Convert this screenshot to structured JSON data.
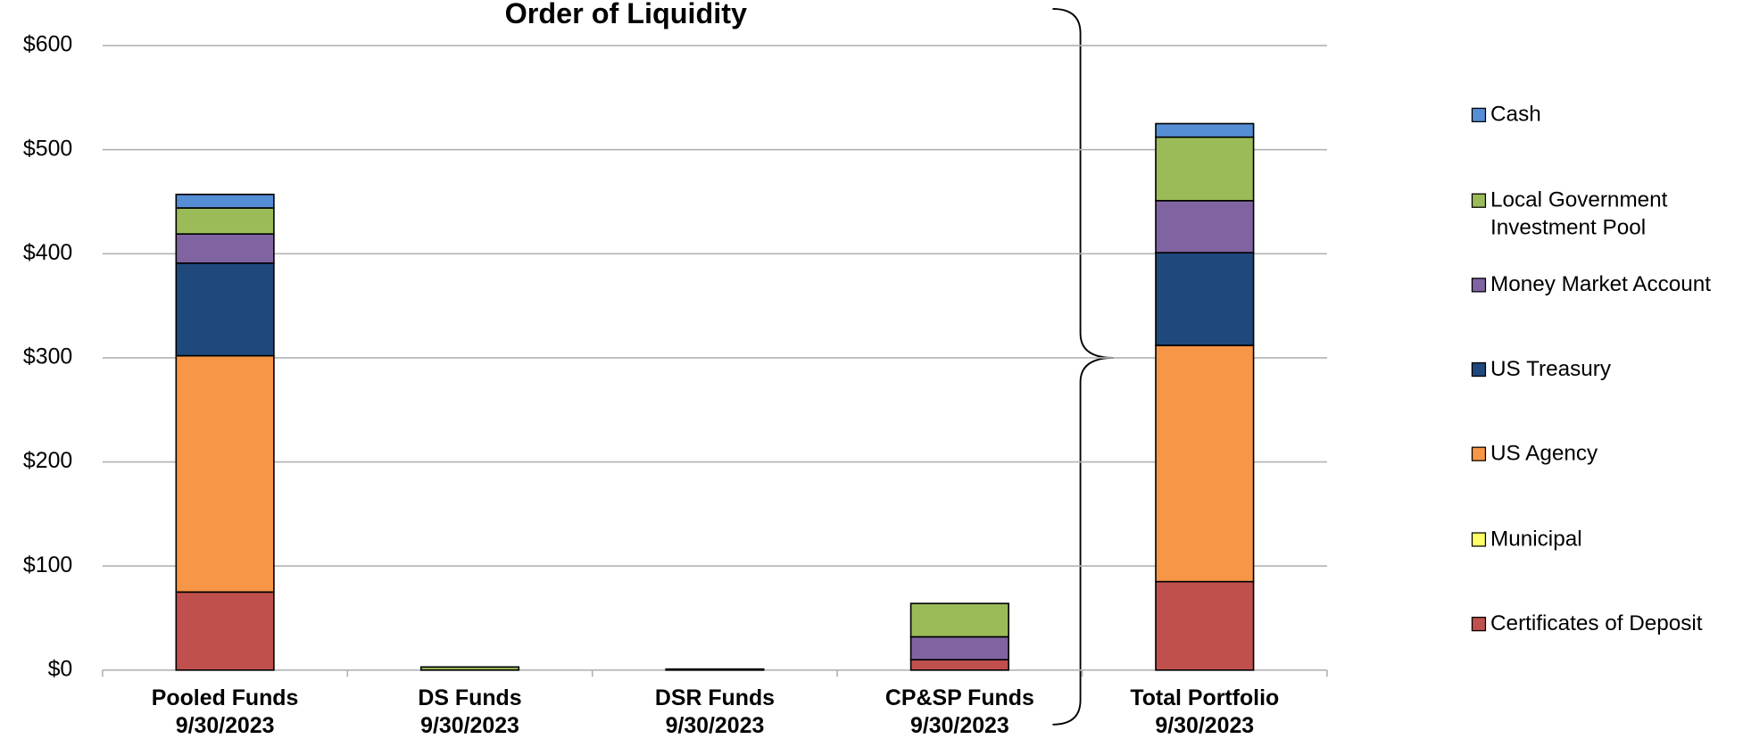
{
  "chart_data": {
    "type": "stacked_bar",
    "title": "Order of Liquidity",
    "categories": [
      [
        "Pooled Funds",
        "9/30/2023"
      ],
      [
        "DS Funds",
        "9/30/2023"
      ],
      [
        "DSR Funds",
        "9/30/2023"
      ],
      [
        "CP&SP Funds",
        "9/30/2023"
      ],
      [
        "Total Portfolio",
        "9/30/2023"
      ]
    ],
    "series": [
      {
        "name": "Certificates of Deposit",
        "color": "#c0504d",
        "values": [
          75,
          0,
          0,
          10,
          85
        ]
      },
      {
        "name": "Municipal",
        "color": "#ffff66",
        "values": [
          0,
          0,
          0,
          0,
          0
        ]
      },
      {
        "name": "US Agency",
        "color": "#f79646",
        "values": [
          227,
          0,
          0,
          0,
          227
        ]
      },
      {
        "name": "US Treasury",
        "color": "#1f497d",
        "values": [
          89,
          0,
          0,
          0,
          89
        ]
      },
      {
        "name": "Money Market Account",
        "color": "#8064a2",
        "values": [
          28,
          0,
          0,
          22,
          50
        ]
      },
      {
        "name": "Local Government Investment Pool",
        "color": "#9bbb59",
        "values": [
          25,
          3,
          1,
          32,
          61
        ]
      },
      {
        "name": "Cash",
        "color": "#558ed5",
        "values": [
          13,
          0,
          0,
          0,
          13
        ]
      }
    ],
    "ylim": [
      0,
      600
    ],
    "yticks": [
      {
        "value": 0,
        "label": "$0"
      },
      {
        "value": 100,
        "label": "$100"
      },
      {
        "value": 200,
        "label": "$200"
      },
      {
        "value": 300,
        "label": "$300"
      },
      {
        "value": 400,
        "label": "$400"
      },
      {
        "value": 500,
        "label": "$500"
      },
      {
        "value": 600,
        "label": "$600"
      }
    ],
    "grid": true,
    "legend": "right"
  }
}
